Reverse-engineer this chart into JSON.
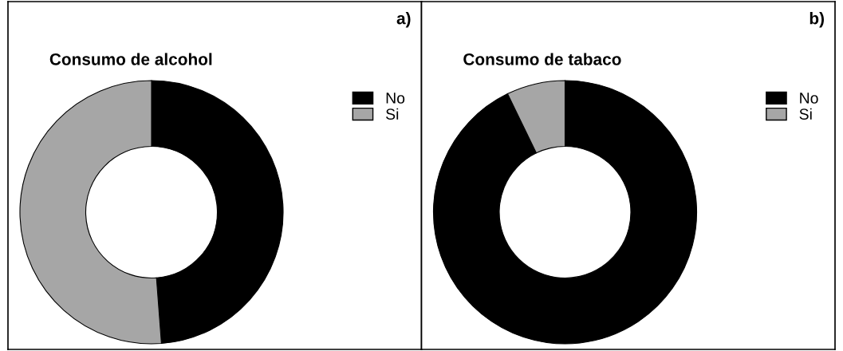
{
  "chart_data": [
    {
      "type": "donut",
      "title": "Consumo de alcohol",
      "categories": [
        "No",
        "Si"
      ],
      "values": [
        48.8,
        51.2
      ],
      "colors": [
        "#000000",
        "#a6a6a6"
      ],
      "legend": "right",
      "annotations": [
        "a)"
      ]
    },
    {
      "type": "donut",
      "title": "Consumo de tabaco",
      "categories": [
        "No",
        "Si"
      ],
      "values": [
        92.8,
        7.2
      ],
      "colors": [
        "#000000",
        "#a6a6a6"
      ],
      "legend": "right",
      "annotations": [
        "b)"
      ]
    }
  ]
}
